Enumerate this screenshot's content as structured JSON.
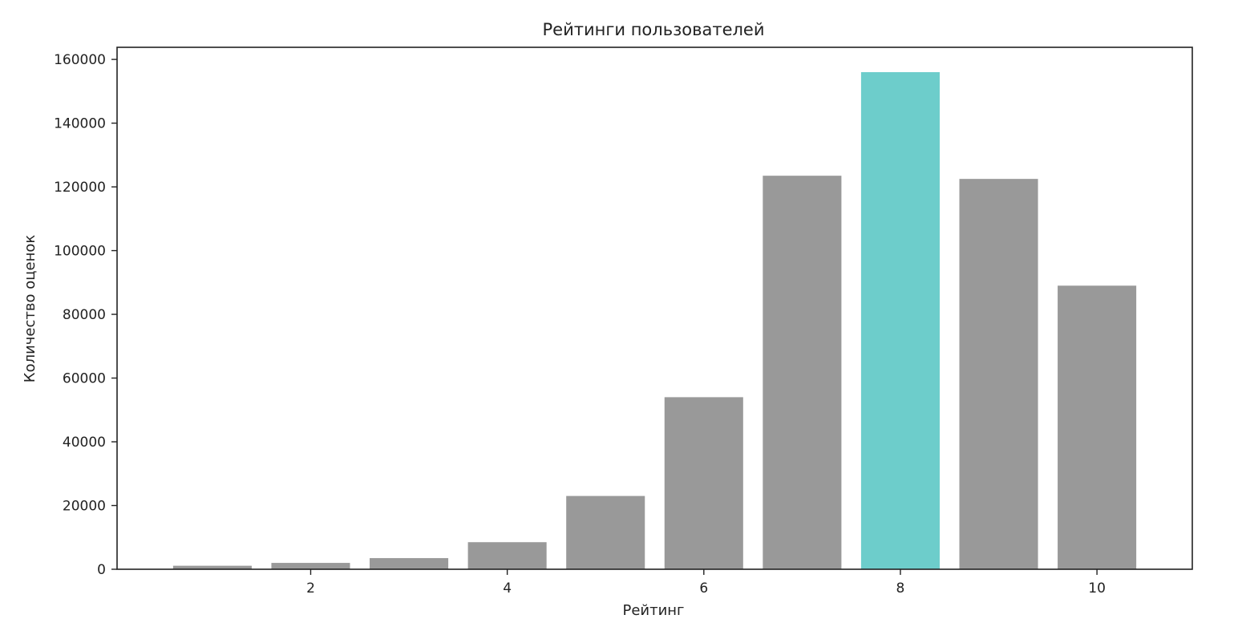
{
  "chart_data": {
    "type": "bar",
    "title": "Рейтинги пользователей",
    "xlabel": "Рейтинг",
    "ylabel": "Количество оценок",
    "categories": [
      1,
      2,
      3,
      4,
      5,
      6,
      7,
      8,
      9,
      10
    ],
    "values": [
      1100,
      2000,
      3500,
      8500,
      23000,
      54000,
      123500,
      156000,
      122500,
      89000
    ],
    "highlight_category": 8,
    "colors": {
      "bar": "#999999",
      "highlight": "#6dcdcb",
      "axis": "#222222"
    },
    "xlim": [
      0.03,
      10.97
    ],
    "ylim": [
      0,
      163800
    ],
    "xticks": [
      2,
      4,
      6,
      8,
      10
    ],
    "yticks": [
      0,
      20000,
      40000,
      60000,
      80000,
      100000,
      120000,
      140000,
      160000
    ],
    "grid": false,
    "legend": "none"
  }
}
